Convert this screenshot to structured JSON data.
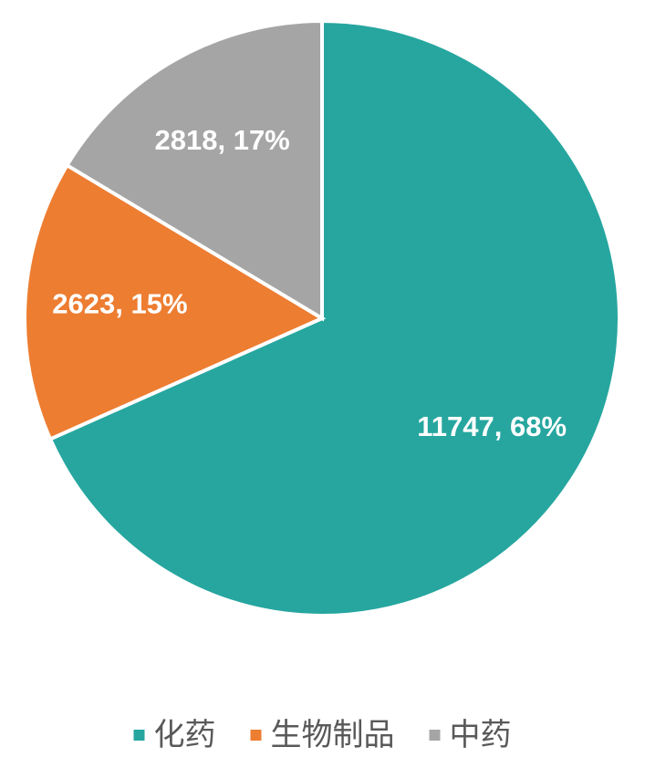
{
  "chart_data": {
    "type": "pie",
    "categories": [
      "化药",
      "生物制品",
      "中药"
    ],
    "values": [
      11747,
      2623,
      2818
    ],
    "value_labels": [
      "11747, 68%",
      "2623, 15%",
      "2818, 17%"
    ],
    "colors": [
      "#26a69f",
      "#ed7d31",
      "#a5a5a5"
    ],
    "legend": "bottom"
  }
}
